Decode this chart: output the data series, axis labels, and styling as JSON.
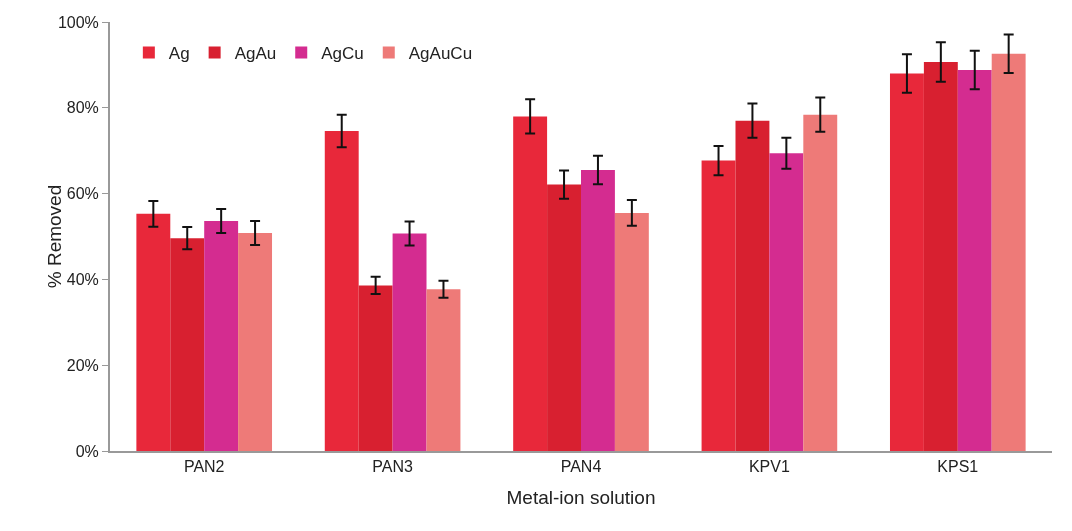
{
  "chart_data": {
    "type": "bar",
    "xlabel": "Metal-ion solution",
    "ylabel": "% Removed",
    "categories": [
      "PAN2",
      "PAN3",
      "PAN4",
      "KPV1",
      "KPS1"
    ],
    "series": [
      {
        "name": "Ag",
        "color": "#e8283a",
        "values": [
          55.3,
          74.6,
          78.0,
          67.7,
          88.0
        ],
        "errors": [
          3,
          3.8,
          4,
          3.4,
          4.5
        ]
      },
      {
        "name": "AgAu",
        "color": "#d82030",
        "values": [
          49.6,
          38.6,
          62.1,
          77.0,
          90.7
        ],
        "errors": [
          2.6,
          2,
          3.3,
          4,
          4.6
        ]
      },
      {
        "name": "AgCu",
        "color": "#d42c90",
        "values": [
          53.6,
          50.7,
          65.5,
          69.4,
          88.8
        ],
        "errors": [
          2.8,
          2.8,
          3.3,
          3.6,
          4.5
        ]
      },
      {
        "name": "AgAuCu",
        "color": "#ee7a78",
        "values": [
          50.8,
          37.7,
          55.5,
          78.4,
          92.6
        ],
        "errors": [
          2.8,
          2,
          3,
          4,
          4.5
        ]
      }
    ],
    "ylim": [
      0,
      100
    ],
    "yticks": [
      {
        "value": 0,
        "label": "0%"
      },
      {
        "value": 20,
        "label": "20%"
      },
      {
        "value": 40,
        "label": "40%"
      },
      {
        "value": 60,
        "label": "60%"
      },
      {
        "value": 80,
        "label": "80%"
      },
      {
        "value": 100,
        "label": "100%"
      }
    ],
    "grid": false,
    "legend": "top left"
  }
}
